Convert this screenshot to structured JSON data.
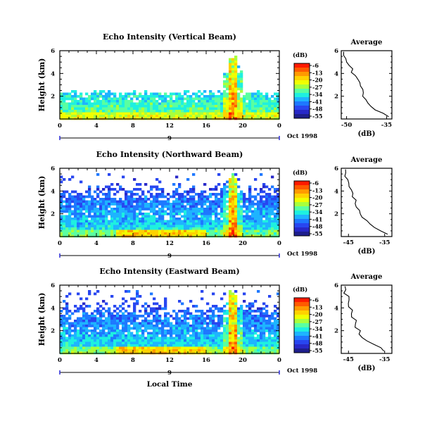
{
  "figure": {
    "xaxis_title": "Local Time",
    "date_label": "Oct 1998",
    "colorbar_unit": "(dB)",
    "colorbar_ticks": [
      "-6",
      "-13",
      "-20",
      "-27",
      "-34",
      "-41",
      "-48",
      "-55"
    ],
    "colorbar_colors": [
      "#ff1a00",
      "#ff5a00",
      "#ff9a00",
      "#ffd200",
      "#f0ff00",
      "#a8ff3c",
      "#5affa0",
      "#1ef0e0",
      "#1eb4ff",
      "#1e78ff",
      "#2846f0",
      "#2828c8",
      "#1e1e8c"
    ],
    "date_tick_colors": {
      "axis": "#000000",
      "end_marks": "#2a2ad8"
    }
  },
  "chart_data": [
    {
      "type": "heatmap",
      "title": "Echo Intensity (Vertical Beam)",
      "ylabel": "Height (km)",
      "xlabel": "",
      "x_ticks": [
        "0",
        "4",
        "8",
        "12",
        "16",
        "20",
        "0"
      ],
      "xlim": [
        0,
        24
      ],
      "day_label": "9",
      "y_ticks": [
        "2",
        "4",
        "6"
      ],
      "ylim": [
        0,
        6
      ],
      "colorbar_range_dB": [
        -55,
        -6
      ],
      "profile": {
        "title": "Average",
        "xlabel": "(dB)",
        "x_ticks": [
          "-50",
          "-35"
        ],
        "xlim": [
          -52,
          -33
        ],
        "y_ticks": [
          "2",
          "4",
          "6"
        ],
        "ylim": [
          0,
          6
        ],
        "heights_km": [
          0.2,
          0.5,
          0.8,
          1.1,
          1.4,
          1.7,
          2.0,
          2.3,
          2.6,
          2.9,
          3.2,
          3.5,
          3.8,
          4.1,
          4.4,
          4.7,
          5.0,
          5.3,
          5.6,
          5.9
        ],
        "values_dB": [
          -34,
          -36,
          -39,
          -41,
          -42,
          -43,
          -44,
          -44,
          -44,
          -45,
          -45,
          -46,
          -47,
          -48,
          -48,
          -49,
          -50,
          -50,
          -51,
          -51
        ]
      }
    },
    {
      "type": "heatmap",
      "title": "Echo Intensity (Northward Beam)",
      "ylabel": "Height (km)",
      "xlabel": "",
      "x_ticks": [
        "0",
        "4",
        "8",
        "12",
        "16",
        "20",
        "0"
      ],
      "xlim": [
        0,
        24
      ],
      "day_label": "9",
      "y_ticks": [
        "2",
        "4",
        "6"
      ],
      "ylim": [
        0,
        6
      ],
      "colorbar_range_dB": [
        -55,
        -6
      ],
      "profile": {
        "title": "Average",
        "xlabel": "(dB)",
        "x_ticks": [
          "-45",
          "-35"
        ],
        "xlim": [
          -47,
          -33
        ],
        "y_ticks": [
          "2",
          "4",
          "6"
        ],
        "ylim": [
          0,
          6
        ],
        "heights_km": [
          0.2,
          0.5,
          0.8,
          1.1,
          1.4,
          1.7,
          2.0,
          2.3,
          2.6,
          2.9,
          3.2,
          3.5,
          3.8,
          4.1,
          4.4,
          4.7,
          5.0,
          5.3,
          5.6,
          5.9
        ],
        "values_dB": [
          -34,
          -36,
          -38,
          -39,
          -40,
          -41,
          -42,
          -42,
          -43,
          -43,
          -43,
          -44,
          -44,
          -44,
          -45,
          -45,
          -45,
          -46,
          -46,
          -46
        ]
      }
    },
    {
      "type": "heatmap",
      "title": "Echo Intensity (Eastward Beam)",
      "ylabel": "Height (km)",
      "xlabel": "Local Time",
      "x_ticks": [
        "0",
        "4",
        "8",
        "12",
        "16",
        "20",
        "0"
      ],
      "xlim": [
        0,
        24
      ],
      "day_label": "9",
      "y_ticks": [
        "2",
        "4",
        "6"
      ],
      "ylim": [
        0,
        6
      ],
      "colorbar_range_dB": [
        -55,
        -6
      ],
      "profile": {
        "title": "Average",
        "xlabel": "(dB)",
        "x_ticks": [
          "-45",
          "-35"
        ],
        "xlim": [
          -47,
          -33
        ],
        "y_ticks": [
          "2",
          "4",
          "6"
        ],
        "ylim": [
          0,
          6
        ],
        "heights_km": [
          0.2,
          0.5,
          0.8,
          1.1,
          1.4,
          1.7,
          2.0,
          2.3,
          2.6,
          2.9,
          3.2,
          3.5,
          3.8,
          4.1,
          4.4,
          4.7,
          5.0,
          5.3,
          5.6,
          5.9
        ],
        "values_dB": [
          -35,
          -36,
          -38,
          -40,
          -41,
          -42,
          -42,
          -43,
          -43,
          -43,
          -44,
          -44,
          -44,
          -45,
          -45,
          -45,
          -45,
          -46,
          -46,
          -46
        ]
      }
    }
  ]
}
